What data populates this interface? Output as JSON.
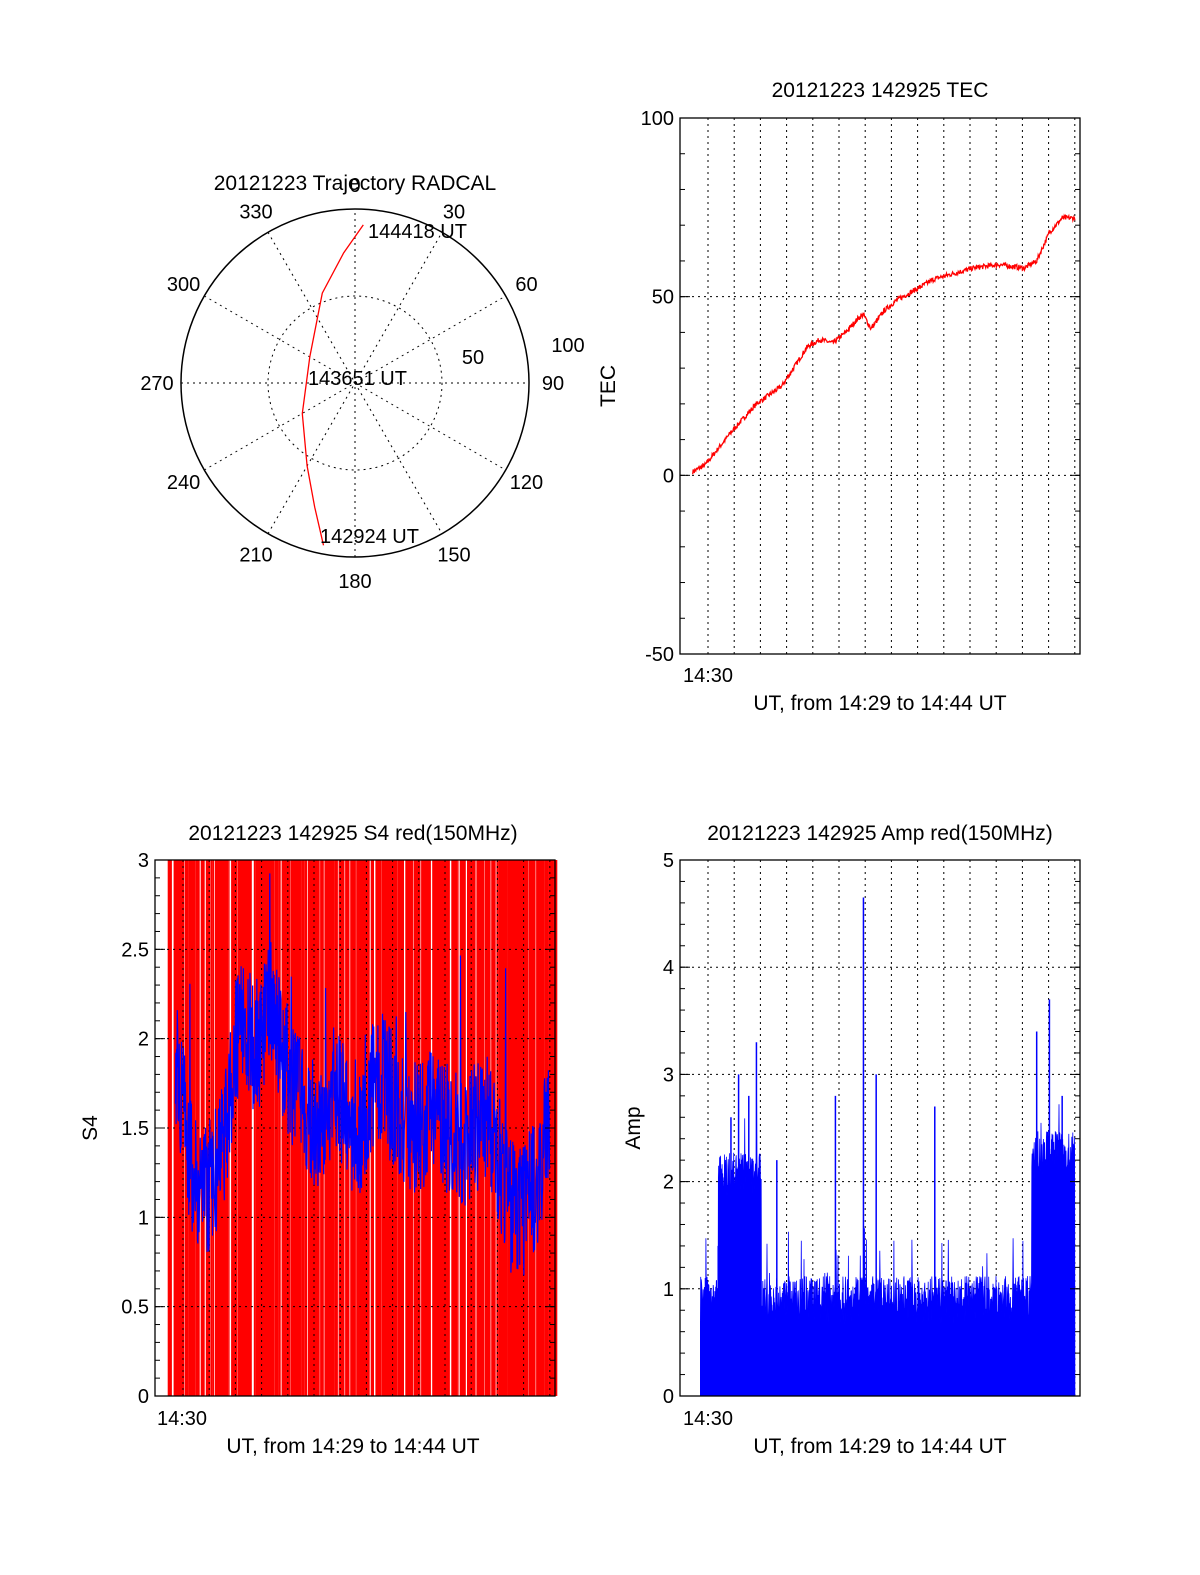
{
  "colors": {
    "red": "#ff0000",
    "blue": "#0000ff",
    "ink": "#000000"
  },
  "chart_data": [
    {
      "type": "polar",
      "title": "20121223 Trajectory RADCAL",
      "azimuth_labels": [
        "0",
        "30",
        "60",
        "90",
        "120",
        "150",
        "180",
        "210",
        "240",
        "270",
        "300",
        "330"
      ],
      "elevation_ring_labels": [
        "50",
        "100"
      ],
      "track": {
        "start_label": "142924 UT",
        "mid_label": "143651 UT",
        "end_label": "144418 UT",
        "points": [
          {
            "az": 191,
            "r": 95
          },
          {
            "az": 198,
            "r": 75
          },
          {
            "az": 210,
            "r": 55
          },
          {
            "az": 240,
            "r": 35
          },
          {
            "az": 300,
            "r": 30
          },
          {
            "az": 340,
            "r": 55
          },
          {
            "az": 355,
            "r": 75
          },
          {
            "az": 3,
            "r": 91
          }
        ]
      }
    },
    {
      "type": "line",
      "title": "20121223 142925 TEC",
      "ylabel": "TEC",
      "xlabel": "UT, from 14:29 to 14:44 UT",
      "xtick_label": "14:30",
      "yticks": [
        "-50",
        "0",
        "50",
        "100"
      ],
      "ylim": [
        -50,
        100
      ],
      "xlim": [
        0,
        15
      ],
      "series": [
        {
          "color": "red",
          "x": [
            0,
            0.5,
            1.5,
            2.5,
            3.5,
            4.5,
            5.0,
            5.5,
            6.0,
            6.5,
            6.7,
            7.0,
            7.5,
            8.0,
            8.5,
            9.0,
            9.5,
            10.0,
            11.0,
            12.0,
            13.0,
            13.5,
            14.0,
            14.5,
            15.0
          ],
          "y": [
            1,
            3,
            12,
            20,
            25,
            36,
            38,
            37,
            40,
            44,
            45,
            41,
            46,
            49,
            51,
            53,
            55,
            56,
            58,
            59,
            58,
            60,
            68,
            72,
            72
          ]
        }
      ]
    },
    {
      "type": "line",
      "title": "20121223 142925 S4 red(150MHz)",
      "ylabel": "S4",
      "xlabel": "UT, from 14:29 to 14:44 UT",
      "xtick_label": "14:30",
      "yticks": [
        "0",
        "0.5",
        "1",
        "1.5",
        "2",
        "2.5",
        "3"
      ],
      "ylim": [
        0,
        3
      ],
      "xlim": [
        0,
        15
      ],
      "series": [
        {
          "color": "blue",
          "x": [
            0.3,
            0.6,
            1.0,
            1.4,
            1.8,
            2.2,
            2.6,
            3.0,
            3.5,
            4.0,
            4.5,
            5.0,
            5.5,
            6.0,
            6.5,
            7.0,
            7.5,
            8.0,
            8.5,
            9.0,
            9.5,
            10.0,
            10.5,
            11.0,
            11.5,
            12.0,
            12.5,
            13.0,
            13.5,
            14.0,
            14.5,
            15.0
          ],
          "y": [
            1.9,
            1.6,
            1.2,
            1.15,
            1.2,
            1.4,
            1.9,
            2.2,
            1.8,
            2.3,
            1.9,
            1.7,
            1.6,
            1.5,
            1.7,
            1.6,
            1.4,
            1.7,
            1.8,
            1.6,
            1.5,
            1.5,
            1.6,
            1.5,
            1.4,
            1.5,
            1.55,
            1.3,
            1.05,
            1.05,
            1.2,
            1.6
          ]
        },
        {
          "color": "red",
          "style": "dense vertical spikes from 0 to 3"
        }
      ]
    },
    {
      "type": "bar",
      "title": "20121223 142925 Amp red(150MHz)",
      "ylabel": "Amp",
      "xlabel": "UT, from 14:29 to 14:44 UT",
      "xtick_label": "14:30",
      "yticks": [
        "0",
        "1",
        "2",
        "3",
        "4",
        "5"
      ],
      "ylim": [
        0,
        5
      ],
      "xlim": [
        0,
        15
      ],
      "series": [
        {
          "color": "blue",
          "peaks": [
            {
              "x": 0.5,
              "y": 1.1
            },
            {
              "x": 1.0,
              "y": 1.4
            },
            {
              "x": 1.5,
              "y": 2.6
            },
            {
              "x": 1.8,
              "y": 3.0
            },
            {
              "x": 2.2,
              "y": 2.8
            },
            {
              "x": 2.5,
              "y": 3.3
            },
            {
              "x": 3.3,
              "y": 2.2
            },
            {
              "x": 5.6,
              "y": 2.8
            },
            {
              "x": 6.7,
              "y": 4.65
            },
            {
              "x": 7.2,
              "y": 3.0
            },
            {
              "x": 9.5,
              "y": 2.7
            },
            {
              "x": 13.5,
              "y": 3.4
            },
            {
              "x": 14.0,
              "y": 3.7
            },
            {
              "x": 14.5,
              "y": 2.8
            }
          ]
        }
      ]
    }
  ]
}
